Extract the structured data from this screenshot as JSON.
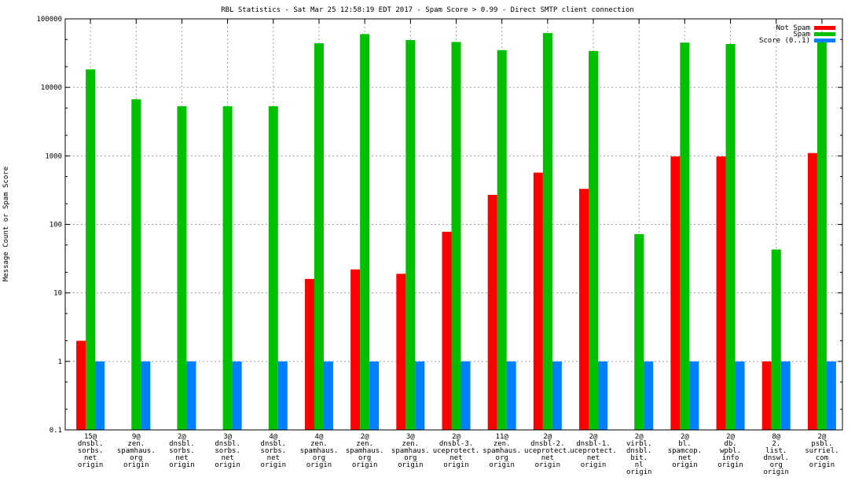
{
  "chart_data": {
    "type": "bar",
    "title": "RBL Statistics - Sat Mar 25 12:58:19 EDT 2017 - Spam Score > 0.99 - Direct SMTP client connection",
    "xlabel": "",
    "ylabel": "Message Count or Spam Score",
    "yscale": "log",
    "ylim": [
      0.1,
      100000
    ],
    "yticks": [
      "0.1",
      "1",
      "10",
      "100",
      "1000",
      "10000",
      "100000"
    ],
    "grid": true,
    "legend_position": "top-right",
    "categories": [
      [
        "15@",
        "dnsbl.",
        "sorbs.",
        "net",
        "origin"
      ],
      [
        "9@",
        "zen.",
        "spamhaus.",
        "org",
        "origin"
      ],
      [
        "2@",
        "dnsbl.",
        "sorbs.",
        "net",
        "origin"
      ],
      [
        "3@",
        "dnsbl.",
        "sorbs.",
        "net",
        "origin"
      ],
      [
        "4@",
        "dnsbl.",
        "sorbs.",
        "net",
        "origin"
      ],
      [
        "4@",
        "zen.",
        "spamhaus.",
        "org",
        "origin"
      ],
      [
        "2@",
        "zen.",
        "spamhaus.",
        "org",
        "origin"
      ],
      [
        "3@",
        "zen.",
        "spamhaus.",
        "org",
        "origin"
      ],
      [
        "2@",
        "dnsbl-3.",
        "uceprotect.",
        "net",
        "origin"
      ],
      [
        "11@",
        "zen.",
        "spamhaus.",
        "org",
        "origin"
      ],
      [
        "2@",
        "dnsbl-2.",
        "uceprotect.",
        "net",
        "origin"
      ],
      [
        "2@",
        "dnsbl-1.",
        "uceprotect.",
        "net",
        "origin"
      ],
      [
        "2@",
        "virbl.",
        "dnsbl.",
        "bit.",
        "nl",
        "origin"
      ],
      [
        "2@",
        "bl.",
        "spamcop.",
        "net",
        "origin"
      ],
      [
        "2@",
        "db.",
        "wpbl.",
        "info",
        "origin"
      ],
      [
        "8@",
        "2.",
        "list.",
        "dnswl.",
        "org",
        "origin"
      ],
      [
        "2@",
        "psbl.",
        "surriel.",
        "com",
        "origin"
      ]
    ],
    "series": [
      {
        "name": "Not Spam",
        "color": "#ff0000",
        "values": [
          2,
          null,
          null,
          null,
          null,
          16,
          22,
          19,
          78,
          270,
          570,
          330,
          null,
          980,
          980,
          1,
          1100
        ]
      },
      {
        "name": "Spam",
        "color": "#00c000",
        "values": [
          18300,
          6700,
          5300,
          5300,
          5300,
          44000,
          60000,
          49000,
          46000,
          35000,
          62000,
          34000,
          72,
          45000,
          43000,
          43,
          46000
        ]
      },
      {
        "name": "Score (0..1)",
        "color": "#0080ff",
        "values": [
          1,
          1,
          1,
          1,
          1,
          1,
          1,
          1,
          1,
          1,
          1,
          1,
          1,
          1,
          1,
          1,
          1
        ]
      }
    ]
  }
}
